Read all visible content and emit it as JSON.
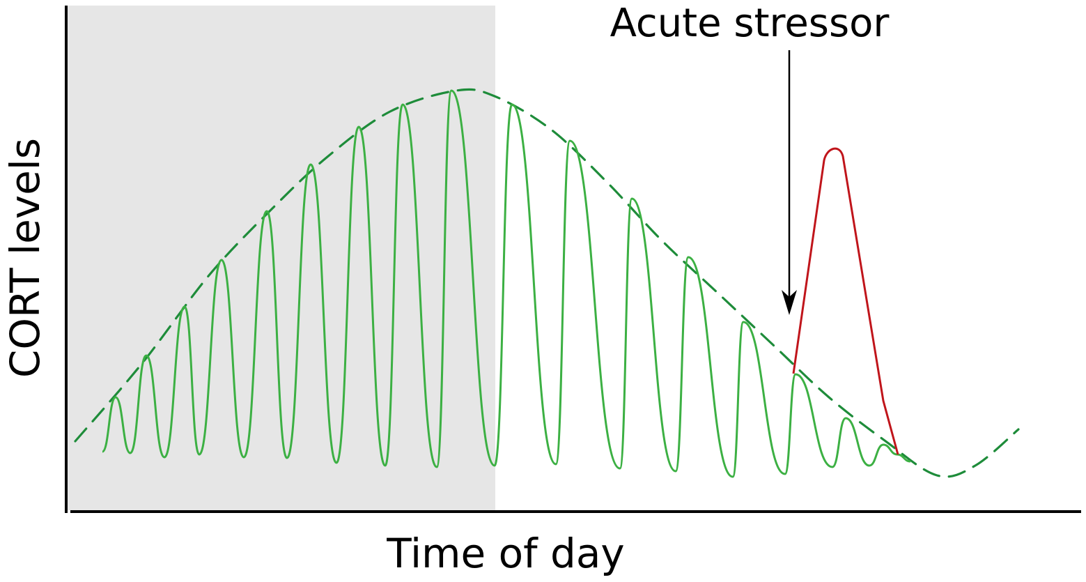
{
  "labels": {
    "y_axis": "CORT levels",
    "x_axis": "Time of day",
    "annotation": "Acute stressor"
  },
  "colors": {
    "pulses": "#3cb043",
    "envelope": "#1e8c3a",
    "stress_response": "#c0151b",
    "dark_phase": "#e6e6e6",
    "axes": "#000000"
  }
}
